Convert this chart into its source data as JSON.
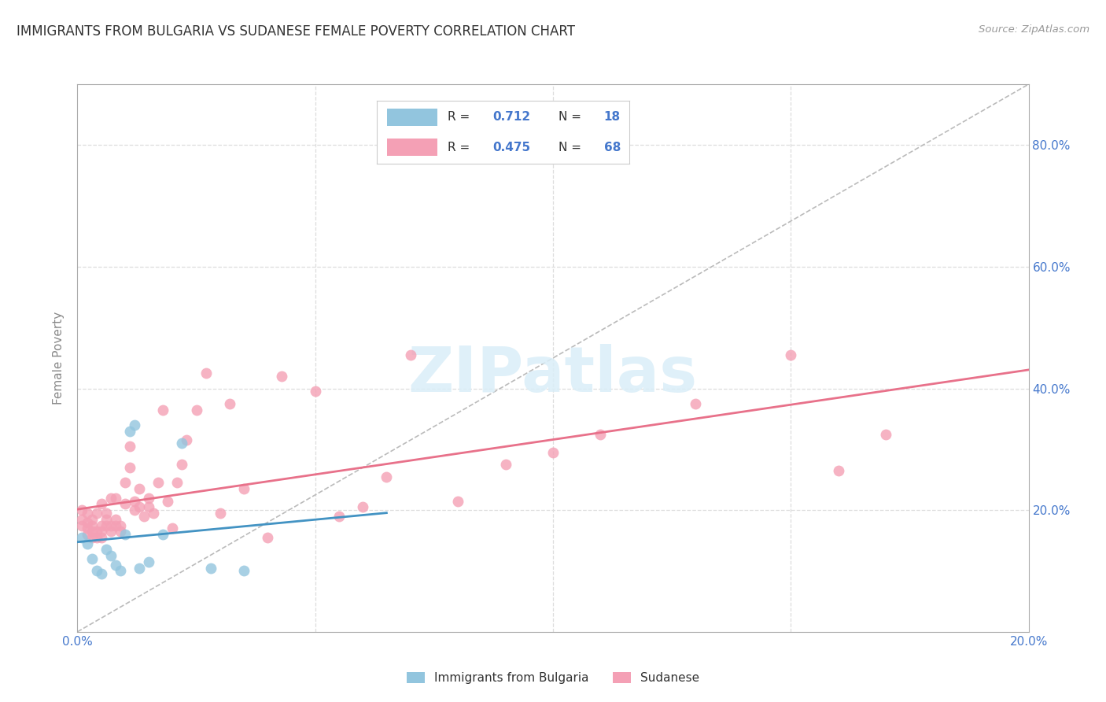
{
  "title": "IMMIGRANTS FROM BULGARIA VS SUDANESE FEMALE POVERTY CORRELATION CHART",
  "source": "Source: ZipAtlas.com",
  "ylabel": "Female Poverty",
  "watermark": "ZIPatlas",
  "xlim": [
    0.0,
    0.2
  ],
  "ylim": [
    0.0,
    0.9
  ],
  "yticks": [
    0.2,
    0.4,
    0.6,
    0.8
  ],
  "ytick_labels": [
    "20.0%",
    "40.0%",
    "60.0%",
    "80.0%"
  ],
  "xticks": [
    0.0,
    0.05,
    0.1,
    0.15,
    0.2
  ],
  "xtick_labels": [
    "0.0%",
    "",
    "",
    "",
    "20.0%"
  ],
  "bulgaria_R": "0.712",
  "bulgaria_N": "18",
  "sudanese_R": "0.475",
  "sudanese_N": "68",
  "legend_label_bulgaria": "Immigrants from Bulgaria",
  "legend_label_sudanese": "Sudanese",
  "color_bulgaria": "#92c5de",
  "color_sudanese": "#f4a0b5",
  "color_bulgaria_line": "#4393c3",
  "color_sudanese_line": "#e8718a",
  "color_diagonal": "#bbbbbb",
  "grid_color": "#dddddd",
  "axis_color": "#aaaaaa",
  "tick_label_color": "#4477cc",
  "title_color": "#333333",
  "ylabel_color": "#888888",
  "bulgaria_scatter_x": [
    0.001,
    0.002,
    0.003,
    0.004,
    0.005,
    0.006,
    0.007,
    0.008,
    0.009,
    0.01,
    0.011,
    0.012,
    0.013,
    0.015,
    0.018,
    0.022,
    0.028,
    0.035
  ],
  "bulgaria_scatter_y": [
    0.155,
    0.145,
    0.12,
    0.1,
    0.095,
    0.135,
    0.125,
    0.11,
    0.1,
    0.16,
    0.33,
    0.34,
    0.105,
    0.115,
    0.16,
    0.31,
    0.105,
    0.1
  ],
  "sudanese_scatter_x": [
    0.001,
    0.001,
    0.001,
    0.002,
    0.002,
    0.002,
    0.002,
    0.003,
    0.003,
    0.003,
    0.003,
    0.004,
    0.004,
    0.004,
    0.005,
    0.005,
    0.005,
    0.005,
    0.006,
    0.006,
    0.006,
    0.007,
    0.007,
    0.007,
    0.008,
    0.008,
    0.008,
    0.009,
    0.009,
    0.01,
    0.01,
    0.011,
    0.011,
    0.012,
    0.012,
    0.013,
    0.013,
    0.014,
    0.015,
    0.015,
    0.016,
    0.017,
    0.018,
    0.019,
    0.02,
    0.021,
    0.022,
    0.023,
    0.025,
    0.027,
    0.03,
    0.032,
    0.035,
    0.04,
    0.043,
    0.05,
    0.055,
    0.06,
    0.065,
    0.07,
    0.08,
    0.09,
    0.1,
    0.11,
    0.13,
    0.15,
    0.16,
    0.17
  ],
  "sudanese_scatter_y": [
    0.175,
    0.185,
    0.2,
    0.16,
    0.17,
    0.18,
    0.195,
    0.155,
    0.165,
    0.175,
    0.185,
    0.155,
    0.165,
    0.195,
    0.155,
    0.165,
    0.175,
    0.21,
    0.175,
    0.185,
    0.195,
    0.165,
    0.175,
    0.22,
    0.175,
    0.185,
    0.22,
    0.165,
    0.175,
    0.21,
    0.245,
    0.27,
    0.305,
    0.2,
    0.215,
    0.205,
    0.235,
    0.19,
    0.205,
    0.22,
    0.195,
    0.245,
    0.365,
    0.215,
    0.17,
    0.245,
    0.275,
    0.315,
    0.365,
    0.425,
    0.195,
    0.375,
    0.235,
    0.155,
    0.42,
    0.395,
    0.19,
    0.205,
    0.255,
    0.455,
    0.215,
    0.275,
    0.295,
    0.325,
    0.375,
    0.455,
    0.265,
    0.325
  ]
}
